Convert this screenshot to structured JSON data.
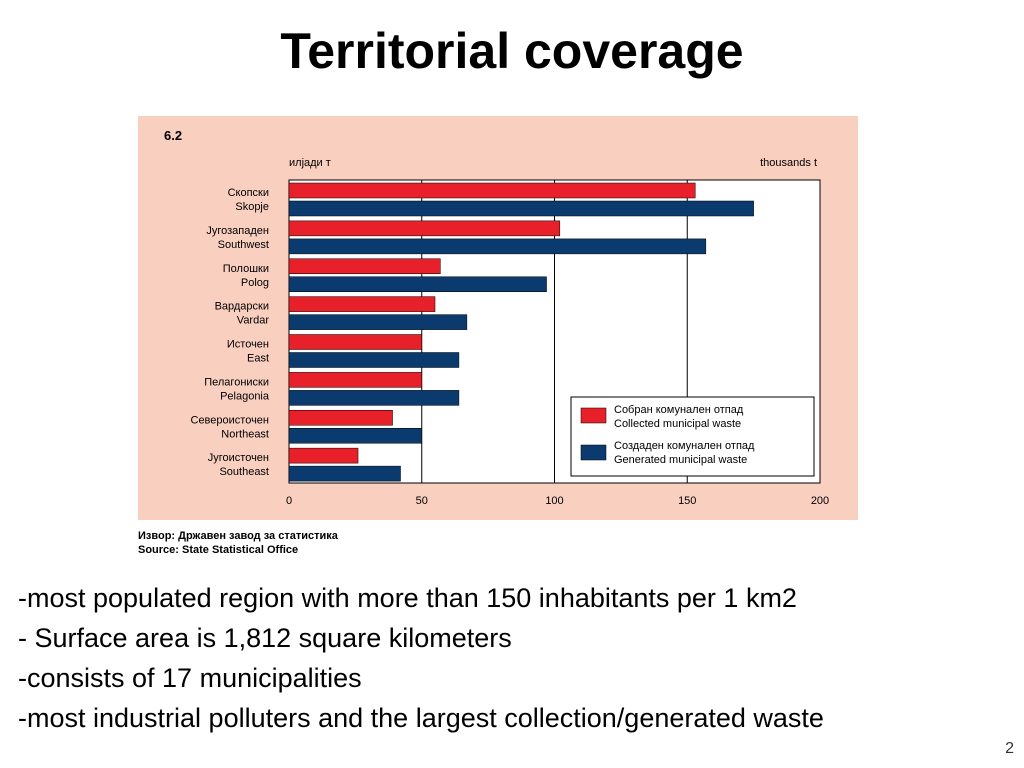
{
  "title": "Territorial coverage",
  "chart_data": {
    "type": "bar",
    "orientation": "horizontal",
    "figure_number": "6.2",
    "unit_left": "илјади т",
    "unit_right": "thousands t",
    "categories": [
      {
        "mk": "Скопски",
        "en": "Skopje"
      },
      {
        "mk": "Југозападен",
        "en": "Southwest"
      },
      {
        "mk": "Полошки",
        "en": "Polog"
      },
      {
        "mk": "Вардарски",
        "en": "Vardar"
      },
      {
        "mk": "Источен",
        "en": "East"
      },
      {
        "mk": "Пелагониски",
        "en": "Pelagonia"
      },
      {
        "mk": "Североисточен",
        "en": "Northeast"
      },
      {
        "mk": "Југоисточен",
        "en": "Southeast"
      }
    ],
    "series": [
      {
        "name_mk": "Собран комунален отпад",
        "name_en": "Collected municipal waste",
        "color": "#e8202a",
        "values": [
          153,
          102,
          57,
          55,
          50,
          50,
          39,
          26
        ]
      },
      {
        "name_mk": "Создаден комунален отпад",
        "name_en": "Generated municipal waste",
        "color": "#0b3a6e",
        "values": [
          175,
          157,
          97,
          67,
          64,
          64,
          50,
          42
        ]
      }
    ],
    "xlim": [
      0,
      200
    ],
    "xticks": [
      "0",
      "50",
      "100",
      "150",
      "200"
    ],
    "grid": "vertical",
    "legend_position": "bottom-right"
  },
  "source": {
    "line1": "Извор: Државен завод за статистика",
    "line2": "Source: State Statistical Office"
  },
  "bullets": [
    "-most populated region with more than  150 inhabitants per 1 km2",
    "- Surface area is 1,812 square kilometers",
    "-consists of 17 municipalities",
    "-most industrial polluters and the largest collection/generated waste"
  ],
  "page_number": "2"
}
